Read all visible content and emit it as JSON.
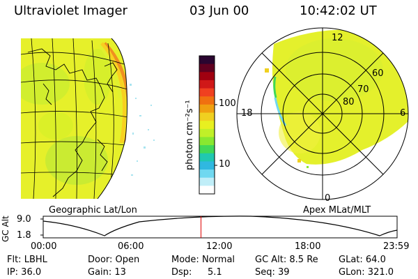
{
  "header": {
    "instrument": "Ultraviolet Imager",
    "date": "03 Jun 00",
    "time": "10:42:02 UT"
  },
  "geo_panel": {
    "label": "Geographic Lat/Lon"
  },
  "polar_panel": {
    "label": "Apex MLat/MLT",
    "lat_labels": [
      "60",
      "70",
      "80"
    ],
    "mlt_labels": [
      "12",
      "18",
      "6",
      "0"
    ]
  },
  "colorbar": {
    "unit_label": "photon cm⁻²s⁻¹",
    "tick_labels": [
      "100",
      "10"
    ],
    "colors": [
      "#2a0530",
      "#600020",
      "#a00010",
      "#d01818",
      "#f04020",
      "#f07010",
      "#f0a010",
      "#f0d020",
      "#e8f020",
      "#c0f028",
      "#88e830",
      "#40d858",
      "#20c8b0",
      "#30b8e0",
      "#70d8f0",
      "#c0eef8",
      "#ffffff"
    ]
  },
  "altitude_plot": {
    "ylabel": "GC Alt",
    "y_ticks": [
      "9.0",
      "1.8"
    ],
    "x_ticks": [
      "00:00",
      "06:00",
      "12:00",
      "18:00",
      "23:59"
    ],
    "current_hour": 10.7
  },
  "info": {
    "flt": "Flt: LBHL",
    "ip": "IP: 36.0",
    "door": "Door: Open",
    "gain": "Gain: 13",
    "mode_label": "Mode:",
    "mode_value": "Normal",
    "dsp_label": "Dsp:",
    "dsp_value": "5.1",
    "gc_alt": "GC Alt: 8.5 Re",
    "seq": "Seq: 39",
    "glat": "GLat:  64.0",
    "glon": "GLon: 321.0"
  }
}
